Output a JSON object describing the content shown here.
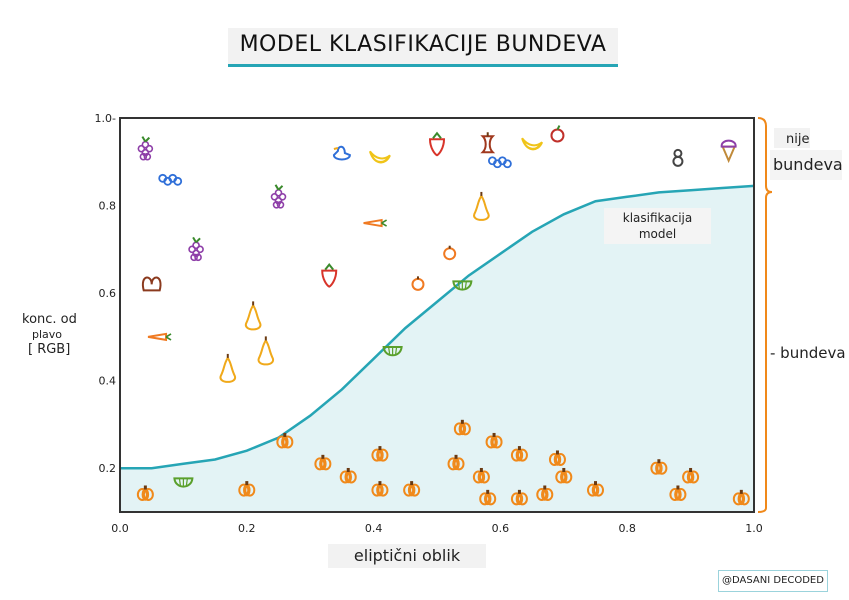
{
  "title": "MODEL KLASIFIKACIJE BUNDEVA",
  "credit": "@DASANI DECODED",
  "legend": {
    "not_pumpkin_line1": "nije",
    "not_pumpkin_line2": "bundeva",
    "pumpkin": "- bundeva"
  },
  "colors": {
    "curve": "#26a5b5",
    "region_fill": "#e3f3f5",
    "frame": "#333333",
    "bracket": "#f0891a",
    "pumpkin": "#f0891a"
  },
  "chart_data": {
    "type": "scatter",
    "title": "MODEL KLASIFIKACIJE BUNDEVA",
    "xlabel": "eliptični oblik",
    "ylabel": [
      "konc. od",
      "plavo",
      "[ RGB]"
    ],
    "xlim": [
      0,
      1
    ],
    "ylim": [
      0.1,
      1
    ],
    "x_ticks": [
      "0.0",
      "0.2",
      "0.4",
      "0.6",
      "0.8",
      "1.0"
    ],
    "y_ticks": [
      "0.2",
      "0.4",
      "0.6",
      "0.8",
      "1.0-"
    ],
    "x_tick_values": [
      0,
      0.2,
      0.4,
      0.6,
      0.8,
      1.0
    ],
    "y_tick_values": [
      0.2,
      0.4,
      0.6,
      0.8,
      1.0
    ],
    "model_label": "klasifikacija\nmodel",
    "decision_boundary": {
      "x": [
        0.0,
        0.05,
        0.1,
        0.15,
        0.2,
        0.25,
        0.3,
        0.35,
        0.4,
        0.45,
        0.5,
        0.55,
        0.6,
        0.65,
        0.7,
        0.75,
        0.8,
        0.85,
        0.9,
        0.95,
        1.0
      ],
      "y": [
        0.2,
        0.2,
        0.21,
        0.22,
        0.24,
        0.27,
        0.32,
        0.38,
        0.45,
        0.52,
        0.58,
        0.64,
        0.69,
        0.74,
        0.78,
        0.81,
        0.82,
        0.83,
        0.835,
        0.84,
        0.845
      ]
    },
    "series": [
      {
        "name": "nije bundeva",
        "points": [
          {
            "x": 0.04,
            "y": 0.93,
            "kind": "grapes"
          },
          {
            "x": 0.08,
            "y": 0.86,
            "kind": "caterpillar"
          },
          {
            "x": 0.12,
            "y": 0.7,
            "kind": "grapes"
          },
          {
            "x": 0.05,
            "y": 0.62,
            "kind": "pretzel"
          },
          {
            "x": 0.06,
            "y": 0.5,
            "kind": "carrot"
          },
          {
            "x": 0.21,
            "y": 0.54,
            "kind": "pear"
          },
          {
            "x": 0.23,
            "y": 0.46,
            "kind": "pear"
          },
          {
            "x": 0.17,
            "y": 0.42,
            "kind": "pear"
          },
          {
            "x": 0.25,
            "y": 0.82,
            "kind": "grapes"
          },
          {
            "x": 0.33,
            "y": 0.64,
            "kind": "strawberry"
          },
          {
            "x": 0.35,
            "y": 0.92,
            "kind": "duck"
          },
          {
            "x": 0.41,
            "y": 0.91,
            "kind": "banana"
          },
          {
            "x": 0.4,
            "y": 0.76,
            "kind": "carrot"
          },
          {
            "x": 0.5,
            "y": 0.94,
            "kind": "strawberry"
          },
          {
            "x": 0.58,
            "y": 0.94,
            "kind": "apple-core"
          },
          {
            "x": 0.6,
            "y": 0.9,
            "kind": "caterpillar"
          },
          {
            "x": 0.65,
            "y": 0.94,
            "kind": "banana"
          },
          {
            "x": 0.69,
            "y": 0.96,
            "kind": "apple"
          },
          {
            "x": 0.57,
            "y": 0.79,
            "kind": "pear"
          },
          {
            "x": 0.52,
            "y": 0.69,
            "kind": "orange"
          },
          {
            "x": 0.47,
            "y": 0.62,
            "kind": "orange"
          },
          {
            "x": 0.54,
            "y": 0.62,
            "kind": "melon"
          },
          {
            "x": 0.43,
            "y": 0.47,
            "kind": "melon"
          },
          {
            "x": 0.88,
            "y": 0.91,
            "kind": "vase"
          },
          {
            "x": 0.96,
            "y": 0.93,
            "kind": "ice-cream"
          }
        ]
      },
      {
        "name": "bundeva",
        "points": [
          {
            "x": 0.04,
            "y": 0.14
          },
          {
            "x": 0.1,
            "y": 0.17,
            "kind": "melon"
          },
          {
            "x": 0.2,
            "y": 0.15
          },
          {
            "x": 0.26,
            "y": 0.26
          },
          {
            "x": 0.32,
            "y": 0.21
          },
          {
            "x": 0.36,
            "y": 0.18
          },
          {
            "x": 0.41,
            "y": 0.23
          },
          {
            "x": 0.41,
            "y": 0.15
          },
          {
            "x": 0.46,
            "y": 0.15
          },
          {
            "x": 0.54,
            "y": 0.29
          },
          {
            "x": 0.53,
            "y": 0.21
          },
          {
            "x": 0.57,
            "y": 0.18
          },
          {
            "x": 0.58,
            "y": 0.13
          },
          {
            "x": 0.59,
            "y": 0.26
          },
          {
            "x": 0.63,
            "y": 0.23
          },
          {
            "x": 0.63,
            "y": 0.13
          },
          {
            "x": 0.67,
            "y": 0.14
          },
          {
            "x": 0.69,
            "y": 0.22
          },
          {
            "x": 0.7,
            "y": 0.18
          },
          {
            "x": 0.75,
            "y": 0.15
          },
          {
            "x": 0.85,
            "y": 0.2
          },
          {
            "x": 0.88,
            "y": 0.14
          },
          {
            "x": 0.9,
            "y": 0.18
          },
          {
            "x": 0.98,
            "y": 0.13
          }
        ]
      }
    ]
  }
}
